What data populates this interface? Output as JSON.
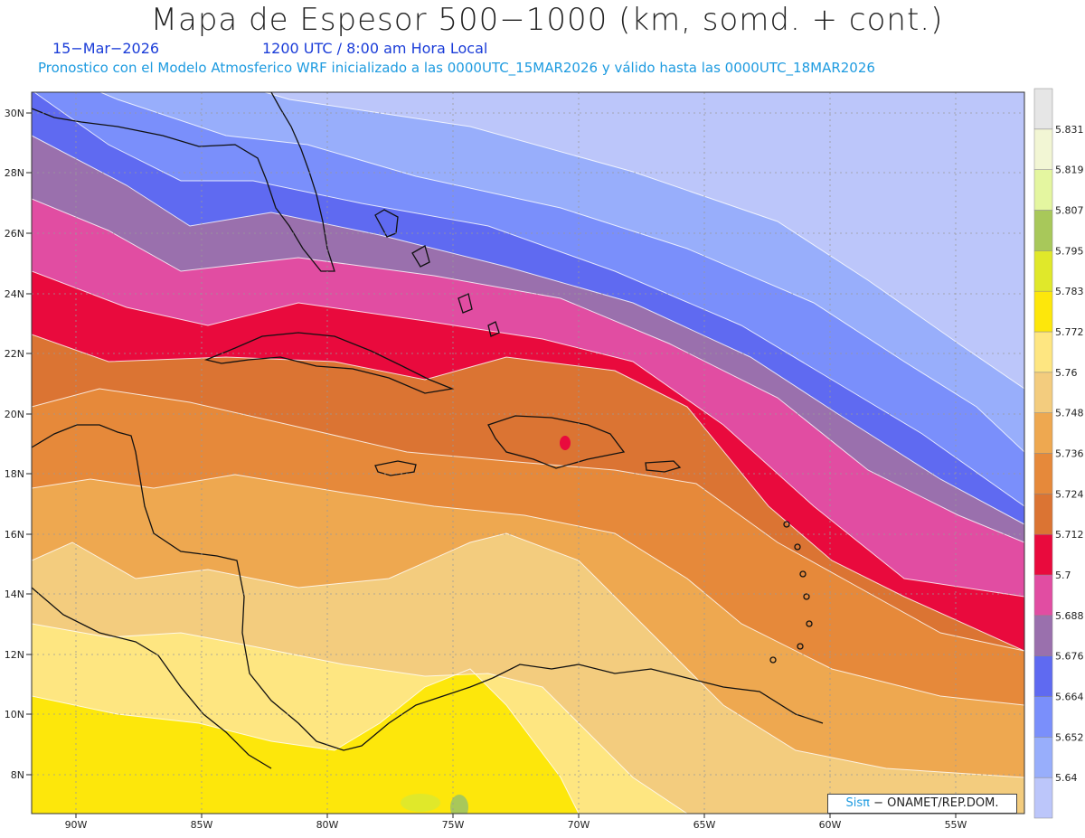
{
  "title": "Mapa de Espesor 500−1000 (km, somd. + cont.)",
  "date": "15−Mar−2026",
  "valid_time": "1200 UTC / 8:00 am Hora Local",
  "subtitle": "Pronostico con el Modelo Atmosferico WRF inicializado a las 0000UTC_15MAR2026 y válido hasta las  0000UTC_18MAR2026",
  "credit": {
    "sis": "Sisπ",
    "rest": "− ONAMET/REP.DOM."
  },
  "lat_labels": [
    "30N",
    "28N",
    "26N",
    "24N",
    "22N",
    "20N",
    "18N",
    "16N",
    "14N",
    "12N",
    "10N",
    "8N"
  ],
  "lon_labels": [
    "90W",
    "85W",
    "80W",
    "75W",
    "70W",
    "65W",
    "60W",
    "55W"
  ],
  "colorbar": {
    "labels": [
      "5.64",
      "5.652",
      "5.664",
      "5.676",
      "5.688",
      "5.7",
      "5.712",
      "5.724",
      "5.736",
      "5.748",
      "5.76",
      "5.772",
      "5.783",
      "5.795",
      "5.807",
      "5.819",
      "5.831"
    ],
    "colors": [
      "#bcc6fa",
      "#98aefb",
      "#7a8ffb",
      "#5f6af1",
      "#9a70ad",
      "#e14da2",
      "#e90a3d",
      "#db7433",
      "#e6893a",
      "#eea850",
      "#f3cc7e",
      "#fee681",
      "#fde70b",
      "#e0e82a",
      "#a8c85a",
      "#e4f6a0",
      "#f2f6d4",
      "#e6e6e6"
    ]
  },
  "band_colors": [
    "#bcc6fa",
    "#98aefb",
    "#7a8ffb",
    "#5f6af1",
    "#9a70ad",
    "#e14da2",
    "#e90a3d",
    "#db7433",
    "#e6893a",
    "#eea850",
    "#f3cc7e",
    "#fee681",
    "#fde70b"
  ]
}
